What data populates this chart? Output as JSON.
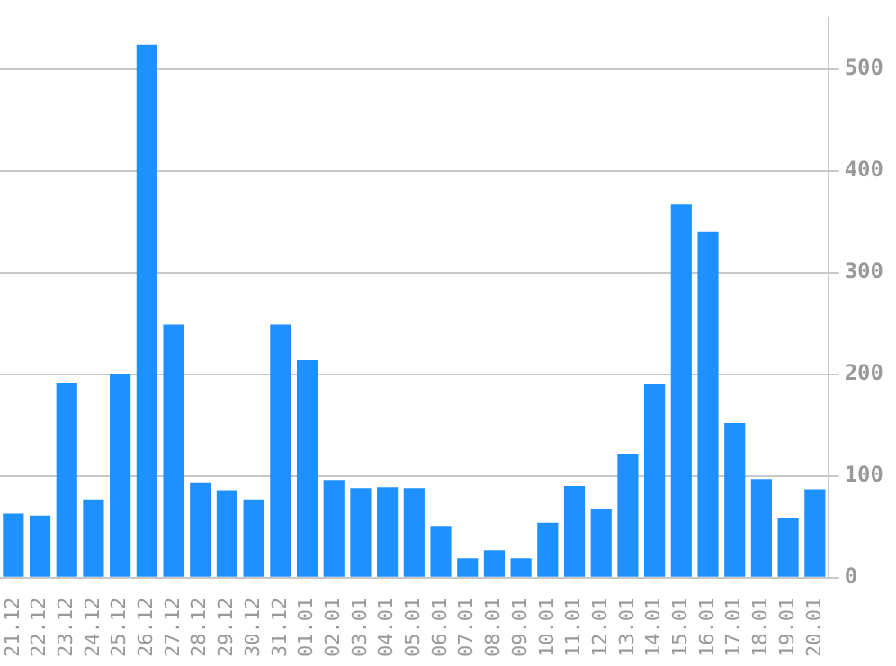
{
  "chart_data": {
    "type": "bar",
    "categories": [
      "21.12",
      "22.12",
      "23.12",
      "24.12",
      "25.12",
      "26.12",
      "27.12",
      "28.12",
      "29.12",
      "30.12",
      "31.12",
      "01.01",
      "02.01",
      "03.01",
      "04.01",
      "05.01",
      "06.01",
      "07.01",
      "08.01",
      "09.01",
      "10.01",
      "11.01",
      "12.01",
      "13.01",
      "14.01",
      "15.01",
      "16.01",
      "17.01",
      "18.01",
      "19.01",
      "20.01"
    ],
    "values": [
      63,
      61,
      191,
      77,
      200,
      524,
      249,
      93,
      86,
      77,
      249,
      214,
      96,
      88,
      89,
      88,
      51,
      19,
      27,
      19,
      54,
      90,
      68,
      122,
      190,
      367,
      340,
      152,
      97,
      59,
      87
    ],
    "color": "#1e90ff",
    "ylim": [
      0,
      550
    ],
    "yticks": [
      0,
      100,
      200,
      300,
      400,
      500
    ],
    "grid": "y",
    "legend": false
  }
}
